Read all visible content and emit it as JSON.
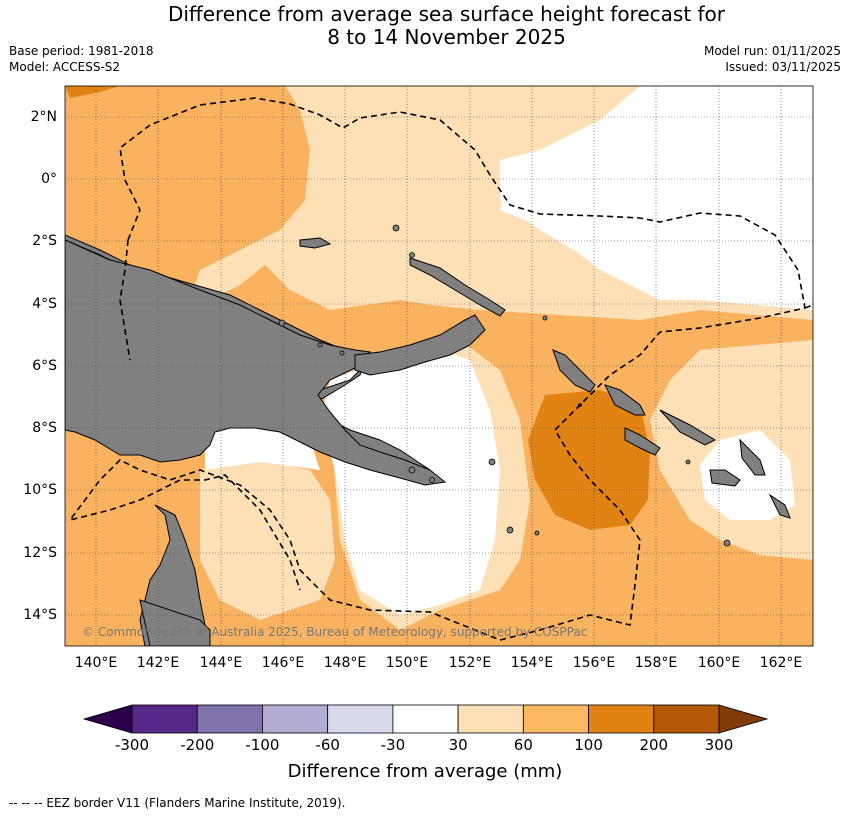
{
  "header": {
    "title_line1": "Difference from average sea surface height forecast for",
    "title_line2": "8 to 14 November 2025",
    "base_period": "Base period: 1981-2018",
    "model": "Model: ACCESS-S2",
    "model_run": "Model run: 01/11/2025",
    "issued": "Issued: 03/11/2025"
  },
  "map": {
    "lat_labels": [
      "2°N",
      "0°",
      "2°S",
      "4°S",
      "6°S",
      "8°S",
      "10°S",
      "12°S",
      "14°S"
    ],
    "lon_labels": [
      "140°E",
      "142°E",
      "144°E",
      "146°E",
      "148°E",
      "150°E",
      "152°E",
      "154°E",
      "156°E",
      "158°E",
      "160°E",
      "162°E"
    ],
    "copyright": "© Commonwealth of Australia 2025, Bureau of Meteorology, supported by COSPPac",
    "colors": {
      "land": "#808080",
      "neutral": "#ffffff",
      "light_orange": "#fde0b6",
      "mid_orange": "#f9b25f",
      "dark_orange": "#e08214"
    }
  },
  "colorbar": {
    "labels": [
      "-300",
      "-200",
      "-100",
      "-60",
      "-30",
      "30",
      "60",
      "100",
      "200",
      "300"
    ],
    "colors": [
      "#2d004b",
      "#542788",
      "#8073ac",
      "#b2abd2",
      "#d8daeb",
      "#ffffff",
      "#fee0b6",
      "#fdb863",
      "#e08214",
      "#b35806",
      "#7f3b08"
    ],
    "title": "Difference from average (mm)"
  },
  "footnote": "--  --  -- EEZ border V11 (Flanders Marine Institute, 2019)."
}
